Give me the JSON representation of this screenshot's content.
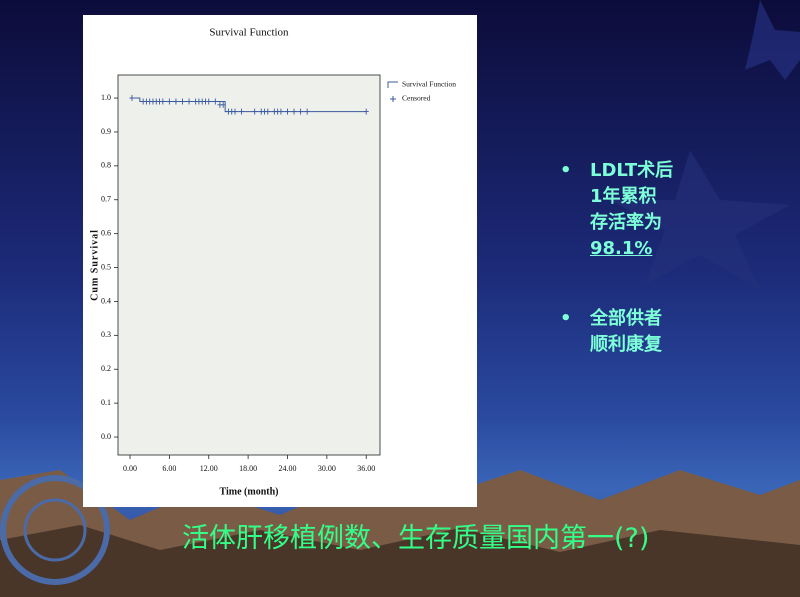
{
  "chart_data": {
    "type": "km",
    "title": "Survival Function",
    "x_label": "Time (month)",
    "y_label": "Cum Survival",
    "xlim": [
      -1.83,
      38.1
    ],
    "ylim": [
      -0.053,
      1.068
    ],
    "xticks": [
      {
        "value": 0,
        "label": "0.00"
      },
      {
        "value": 6,
        "label": "6.00"
      },
      {
        "value": 12,
        "label": "12.00"
      },
      {
        "value": 18,
        "label": "18.00"
      },
      {
        "value": 24,
        "label": "24.00"
      },
      {
        "value": 30,
        "label": "30.00"
      },
      {
        "value": 36,
        "label": "36.00"
      }
    ],
    "yticks": [
      {
        "value": 0,
        "label": "0.0"
      },
      0.1,
      0.2,
      0.3,
      0.4,
      0.5,
      0.6,
      0.7,
      0.8,
      0.9,
      {
        "value": 1,
        "label": "1.0"
      }
    ],
    "series": [
      {
        "name": "Survival Function",
        "color": "#3d5a9e",
        "step": "post",
        "x": [
          0,
          1.5,
          14.5,
          36
        ],
        "values": [
          1.0,
          0.99,
          0.96,
          0.96
        ]
      },
      {
        "name": "Censored",
        "color": "#3d5a9e",
        "marker": "plus",
        "x": [
          0.3,
          2,
          2.5,
          3,
          3.5,
          4,
          4.5,
          5,
          6,
          7,
          8,
          9,
          10,
          10.5,
          11,
          11.5,
          12,
          13,
          13.7,
          14.2,
          15,
          15.5,
          16,
          17,
          19,
          20,
          20.5,
          21,
          22,
          22.5,
          23,
          24,
          25,
          26,
          27,
          36
        ],
        "values": [
          1.0,
          0.99,
          0.99,
          0.99,
          0.99,
          0.99,
          0.99,
          0.99,
          0.99,
          0.99,
          0.99,
          0.99,
          0.99,
          0.99,
          0.99,
          0.99,
          0.99,
          0.99,
          0.98,
          0.98,
          0.96,
          0.96,
          0.96,
          0.96,
          0.96,
          0.96,
          0.96,
          0.96,
          0.96,
          0.96,
          0.96,
          0.96,
          0.96,
          0.96,
          0.96,
          0.96
        ]
      }
    ],
    "legend": "right"
  },
  "bullets": [
    {
      "lines": [
        "LDLT术后",
        "1年累积",
        "存活率为",
        "98.1%"
      ]
    },
    {
      "lines": [
        "全部供者",
        "顺利康复"
      ]
    }
  ],
  "footer": "活体肝移植例数、生存质量国内第一(?)"
}
